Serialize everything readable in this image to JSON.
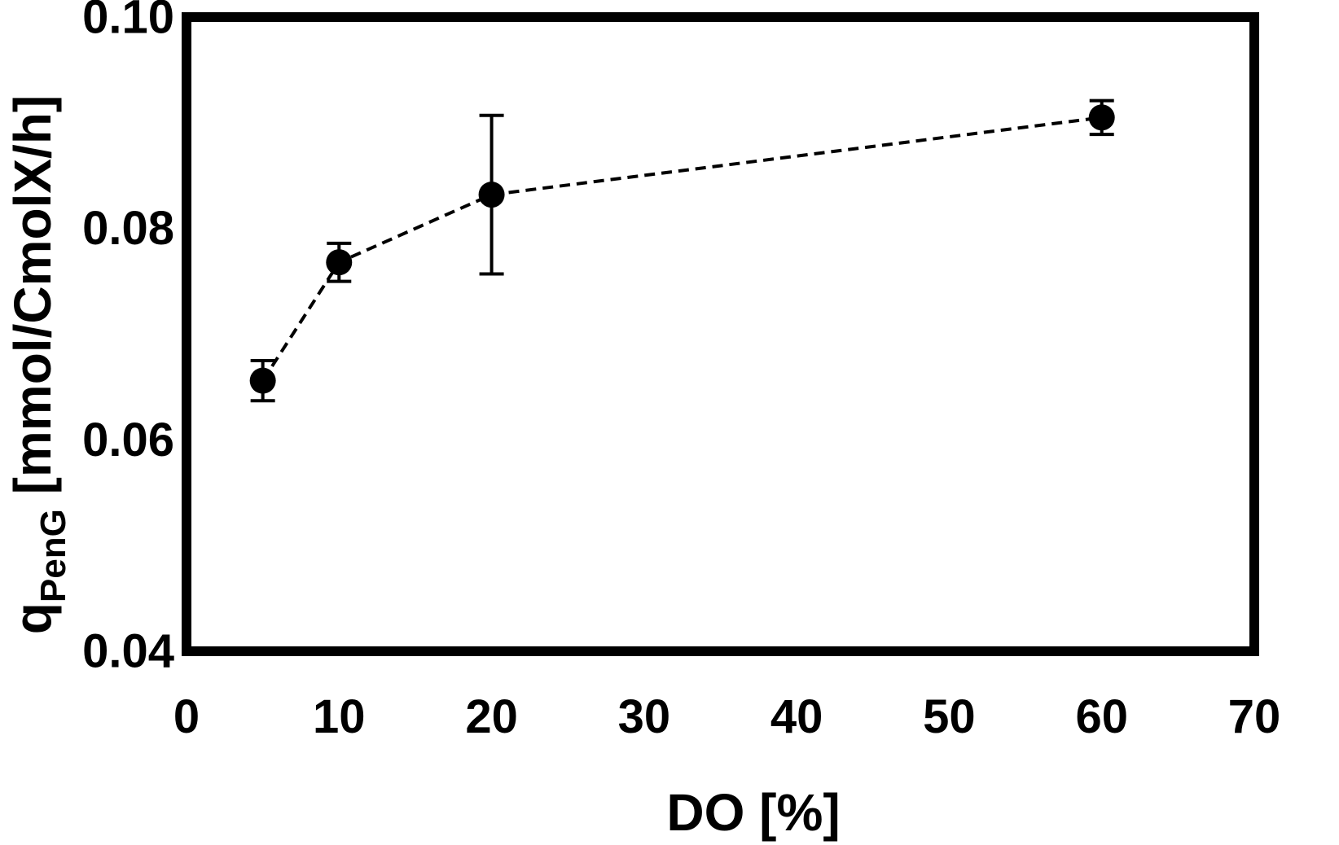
{
  "chart_data": {
    "type": "scatter",
    "title": "",
    "xlabel": "DO [%]",
    "ylabel": {
      "main": "q",
      "subscript": "PenG",
      "rest": " [mmol/CmolX/h]"
    },
    "xlim": [
      0,
      70
    ],
    "ylim": [
      0.04,
      0.1
    ],
    "x_ticks": [
      "0",
      "10",
      "20",
      "30",
      "40",
      "50",
      "60",
      "70"
    ],
    "y_ticks": [
      "0.04",
      "0.06",
      "0.08",
      "0.10"
    ],
    "x_tick_values": [
      0,
      10,
      20,
      30,
      40,
      50,
      60,
      70
    ],
    "y_tick_values": [
      0.04,
      0.06,
      0.08,
      0.1
    ],
    "line_style": "dashed",
    "grid": false,
    "legend": "none",
    "series": [
      {
        "x": [
          5,
          10,
          20,
          60
        ],
        "y": [
          0.0656,
          0.0768,
          0.0832,
          0.0905
        ],
        "error": [
          0.0019,
          0.0018,
          0.0075,
          0.0016
        ]
      }
    ],
    "colors": {
      "marker": "#000000",
      "line": "#000000",
      "frame": "#000000"
    }
  }
}
